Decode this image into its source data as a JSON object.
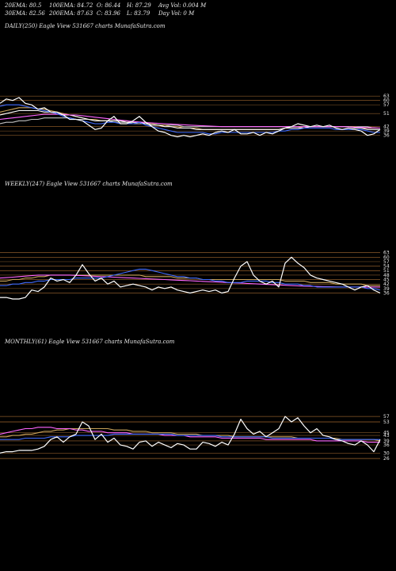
{
  "header": {
    "rows": [
      [
        {
          "t": "20EMA: 80.5"
        },
        {
          "t": "100EMA: 84.72"
        },
        {
          "t": "O: 86.44"
        },
        {
          "t": "H: 87.29"
        },
        {
          "t": "Avg Vol: 0.004 M"
        }
      ],
      [
        {
          "t": "30EMA: 82.56"
        },
        {
          "t": "200EMA: 87.63"
        },
        {
          "t": "C: 83.96"
        },
        {
          "t": "L: 83.79"
        },
        {
          "t": "Day Vol: 0  M"
        }
      ]
    ]
  },
  "chart_data": [
    {
      "type": "line",
      "title": "DAILY(250) Eagle  View  531667 charts MunafaSutra.com",
      "yticks": [
        63,
        60,
        57,
        51,
        42,
        39,
        36
      ],
      "ylim": [
        32,
        68
      ],
      "x": [
        0,
        8,
        16,
        24,
        32,
        40,
        48,
        56,
        64,
        72,
        80,
        88,
        96,
        104,
        112,
        120,
        128,
        136,
        144,
        152,
        160,
        168,
        176,
        184,
        192,
        200,
        208,
        216,
        224,
        232,
        240,
        248,
        256,
        264,
        272,
        280,
        288,
        296,
        304,
        312,
        320,
        328,
        336,
        344,
        352,
        360,
        368,
        376,
        384,
        392,
        400,
        408,
        416,
        424,
        432,
        440,
        448,
        456,
        464,
        472,
        480
      ],
      "series": [
        {
          "color": "#ffffff",
          "values": [
            58,
            61,
            60,
            62,
            58,
            57,
            54,
            55,
            52,
            52,
            50,
            47,
            47,
            46,
            43,
            40,
            41,
            46,
            49,
            44,
            44,
            46,
            49,
            45,
            42,
            39,
            38,
            36,
            35,
            36,
            35,
            36,
            37,
            36,
            38,
            39,
            38,
            40,
            37,
            37,
            38,
            36,
            38,
            37,
            39,
            41,
            42,
            44,
            43,
            42,
            43,
            42,
            43,
            41,
            40,
            41,
            40,
            39,
            36,
            37,
            40
          ]
        },
        {
          "color": "#3f6bff",
          "values": [
            56,
            57,
            57,
            57,
            56,
            55,
            54,
            53,
            52,
            51,
            49,
            48,
            47,
            46,
            45,
            44,
            44,
            45,
            45,
            44,
            44,
            44,
            45,
            43,
            42,
            41,
            40,
            39,
            38,
            38,
            38,
            38,
            38,
            37,
            37,
            38,
            38,
            38,
            38,
            38,
            38,
            38,
            38,
            38,
            39,
            39,
            40,
            40,
            41,
            41,
            41,
            41,
            41,
            40,
            40,
            40,
            40,
            40,
            39,
            38,
            38
          ]
        },
        {
          "color": "#ff66ff",
          "values": [
            47,
            47.5,
            48,
            48.5,
            49,
            49.5,
            50,
            50.5,
            50.5,
            50.5,
            50.5,
            50,
            50,
            49.5,
            49,
            48.5,
            48,
            47.5,
            47,
            46.5,
            46,
            45.5,
            45.2,
            44.8,
            44.5,
            44.2,
            44,
            43.8,
            43.5,
            43.3,
            43,
            42.8,
            42.6,
            42.4,
            42.2,
            42,
            42,
            42,
            42,
            42,
            42,
            42,
            42,
            42,
            42,
            42,
            42,
            42,
            42,
            42,
            42,
            42,
            42,
            42,
            42,
            41.8,
            41.6,
            41.5,
            41.3,
            41.2,
            41
          ]
        },
        {
          "color": "#ffffff",
          "values": [
            50,
            51,
            52,
            53,
            53,
            53,
            53,
            52,
            52,
            51,
            50,
            50,
            49,
            48,
            47,
            46,
            46,
            46,
            46,
            46,
            45,
            45,
            45,
            44,
            43,
            43,
            42,
            42,
            41,
            41,
            41,
            40,
            40,
            40,
            40,
            40,
            40,
            40,
            40,
            40,
            40,
            40,
            40,
            40,
            40,
            41,
            41,
            41,
            41,
            42,
            42,
            42,
            42,
            42,
            42,
            42,
            41,
            41,
            40,
            40,
            40
          ]
        },
        {
          "color": "#c9a35a",
          "values": [
            52,
            53,
            54,
            55,
            55,
            55,
            54,
            54,
            53,
            52,
            51,
            50,
            49,
            48,
            47,
            47,
            46,
            46,
            46,
            46,
            46,
            45,
            45,
            45,
            44,
            43,
            43,
            42,
            42,
            41,
            41,
            41,
            40,
            40,
            40,
            40,
            40,
            40,
            40,
            40,
            40,
            40,
            40,
            40,
            40,
            41,
            41,
            41,
            42,
            42,
            42,
            42,
            42,
            42,
            42,
            42,
            42,
            41,
            41,
            41,
            41
          ]
        },
        {
          "color": "#c0c0c0",
          "values": [
            44,
            45,
            45,
            46,
            46,
            47,
            47,
            48,
            48,
            48,
            48,
            48,
            47,
            47,
            47,
            46,
            46,
            46,
            45,
            45,
            45,
            44,
            44,
            44,
            44,
            43,
            43,
            43,
            43,
            42,
            42,
            42,
            42,
            42,
            42,
            42,
            42,
            42,
            42,
            42,
            42,
            42,
            42,
            42,
            42,
            42,
            42,
            42,
            42,
            42,
            42,
            42,
            42,
            42,
            42,
            42,
            42,
            42,
            42,
            41,
            41
          ]
        }
      ]
    },
    {
      "type": "line",
      "title": "WEEKLY(247) Eagle  View  531667 charts MunafaSutra.com",
      "yticks": [
        63,
        60,
        57,
        54,
        51,
        48,
        45,
        42,
        39,
        36
      ],
      "ylim": [
        32,
        66
      ],
      "x": [
        0,
        8,
        16,
        24,
        32,
        40,
        48,
        56,
        64,
        72,
        80,
        88,
        96,
        104,
        112,
        120,
        128,
        136,
        144,
        152,
        160,
        168,
        176,
        184,
        192,
        200,
        208,
        216,
        224,
        232,
        240,
        248,
        256,
        264,
        272,
        280,
        288,
        296,
        304,
        312,
        320,
        328,
        336,
        344,
        352,
        360,
        368,
        376,
        384,
        392,
        400,
        408,
        416,
        424,
        432,
        440,
        448,
        456,
        464,
        472,
        480
      ],
      "series": [
        {
          "color": "#ffffff",
          "values": [
            33,
            33,
            32,
            32,
            33,
            38,
            37,
            40,
            46,
            44,
            45,
            43,
            48,
            55,
            49,
            44,
            46,
            42,
            44,
            40,
            41,
            42,
            41,
            40,
            38,
            40,
            39,
            40,
            38,
            37,
            36,
            37,
            38,
            37,
            38,
            36,
            37,
            46,
            54,
            57,
            48,
            44,
            42,
            44,
            40,
            56,
            60,
            56,
            53,
            48,
            46,
            45,
            44,
            43,
            42,
            40,
            38,
            40,
            41,
            38,
            36
          ]
        },
        {
          "color": "#3f6bff",
          "values": [
            41,
            41,
            42,
            42,
            43,
            43,
            44,
            44,
            45,
            45,
            45,
            45,
            46,
            46,
            46,
            46,
            46,
            47,
            48,
            49,
            50,
            51,
            52,
            52,
            51,
            50,
            49,
            48,
            47,
            47,
            46,
            46,
            45,
            45,
            44,
            44,
            43,
            43,
            43,
            44,
            44,
            44,
            44,
            43,
            43,
            42,
            42,
            42,
            41,
            41,
            40,
            40,
            40,
            40,
            40,
            40,
            40,
            40,
            39,
            39,
            38
          ]
        },
        {
          "color": "#ff66ff",
          "values": [
            46,
            46.3,
            46.6,
            47,
            47.3,
            47.6,
            48,
            48,
            48,
            48,
            48,
            48,
            47.8,
            47.6,
            47.4,
            47.2,
            47,
            46.8,
            46.6,
            46.4,
            46.2,
            46,
            45.8,
            45.6,
            45.4,
            45.2,
            45,
            44.8,
            44.6,
            44.4,
            44.2,
            44,
            43.8,
            43.6,
            43.4,
            43.2,
            43,
            42.8,
            42.6,
            42.4,
            42.2,
            42,
            41.8,
            41.6,
            41.4,
            41.2,
            41,
            40.8,
            40.6,
            40.5,
            40.4,
            40.3,
            40.2,
            40.1,
            40,
            40,
            40,
            40,
            40,
            40,
            40
          ]
        },
        {
          "color": "#c9a35a",
          "values": [
            44,
            44,
            45,
            45,
            46,
            46,
            47,
            47,
            48,
            48,
            48,
            48,
            48,
            48,
            48,
            48,
            48,
            48,
            48,
            48,
            48,
            48,
            48,
            47,
            47,
            47,
            47,
            47,
            46,
            46,
            46,
            46,
            45,
            45,
            45,
            45,
            45,
            45,
            45,
            45,
            45,
            45,
            45,
            45,
            45,
            44,
            44,
            44,
            44,
            43,
            43,
            43,
            43,
            42,
            42,
            42,
            42,
            42,
            41,
            41,
            41
          ]
        }
      ]
    },
    {
      "type": "line",
      "title": "MONTHLY(61) Eagle  View  531667 charts MunafaSutra.com",
      "yticks": [
        57,
        53,
        45,
        43,
        39,
        36,
        30,
        26
      ],
      "ylim": [
        22,
        60
      ],
      "x": [
        0,
        8,
        16,
        24,
        32,
        40,
        48,
        56,
        64,
        72,
        80,
        88,
        96,
        104,
        112,
        120,
        128,
        136,
        144,
        152,
        160,
        168,
        176,
        184,
        192,
        200,
        208,
        216,
        224,
        232,
        240,
        248,
        256,
        264,
        272,
        280,
        288,
        296,
        304,
        312,
        320,
        328,
        336,
        344,
        352,
        360,
        368,
        376,
        384,
        392,
        400,
        408,
        416,
        424,
        432,
        440,
        448,
        456,
        464,
        472,
        480
      ],
      "series": [
        {
          "color": "#ffffff",
          "values": [
            30,
            31,
            31,
            32,
            32,
            32,
            33,
            35,
            40,
            42,
            38,
            42,
            44,
            53,
            50,
            40,
            44,
            38,
            41,
            36,
            35,
            33,
            38,
            39,
            35,
            38,
            36,
            34,
            37,
            36,
            33,
            33,
            38,
            37,
            35,
            38,
            36,
            44,
            55,
            48,
            44,
            46,
            42,
            45,
            48,
            57,
            53,
            56,
            50,
            45,
            48,
            43,
            42,
            40,
            39,
            37,
            36,
            39,
            36,
            31,
            40
          ]
        },
        {
          "color": "#3f6bff",
          "values": [
            40,
            40,
            40,
            40,
            41,
            41,
            41,
            41,
            42,
            42,
            42,
            42,
            43,
            43,
            43,
            43,
            43,
            43,
            44,
            44,
            44,
            44,
            44,
            44,
            44,
            44,
            44,
            44,
            43,
            43,
            43,
            43,
            43,
            43,
            43,
            42,
            42,
            42,
            42,
            42,
            42,
            42,
            42,
            41,
            41,
            41,
            41,
            41,
            41,
            41,
            41,
            41,
            41,
            40,
            40,
            40,
            40,
            40,
            40,
            40,
            40
          ]
        },
        {
          "color": "#ff66ff",
          "values": [
            44,
            45,
            46,
            47,
            48,
            48,
            49,
            49,
            49,
            48,
            48,
            48,
            47,
            47,
            46,
            46,
            46,
            45,
            45,
            45,
            45,
            44,
            44,
            44,
            44,
            44,
            43,
            43,
            43,
            43,
            42,
            42,
            42,
            42,
            42,
            41,
            41,
            41,
            41,
            41,
            41,
            41,
            40,
            40,
            40,
            40,
            40,
            40,
            40,
            40,
            39,
            39,
            39,
            39,
            39,
            39,
            39,
            39,
            38,
            38,
            38
          ]
        },
        {
          "color": "#c9a35a",
          "values": [
            42,
            42,
            43,
            43,
            44,
            44,
            45,
            46,
            46,
            47,
            47,
            48,
            48,
            48,
            48,
            48,
            48,
            48,
            47,
            47,
            47,
            46,
            46,
            46,
            45,
            45,
            45,
            45,
            44,
            44,
            44,
            44,
            43,
            43,
            43,
            43,
            43,
            42,
            42,
            42,
            42,
            42,
            42,
            42,
            42,
            42,
            42,
            41,
            41,
            41,
            41,
            41,
            41,
            41,
            40,
            40,
            40,
            40,
            40,
            40,
            39
          ]
        }
      ]
    }
  ]
}
